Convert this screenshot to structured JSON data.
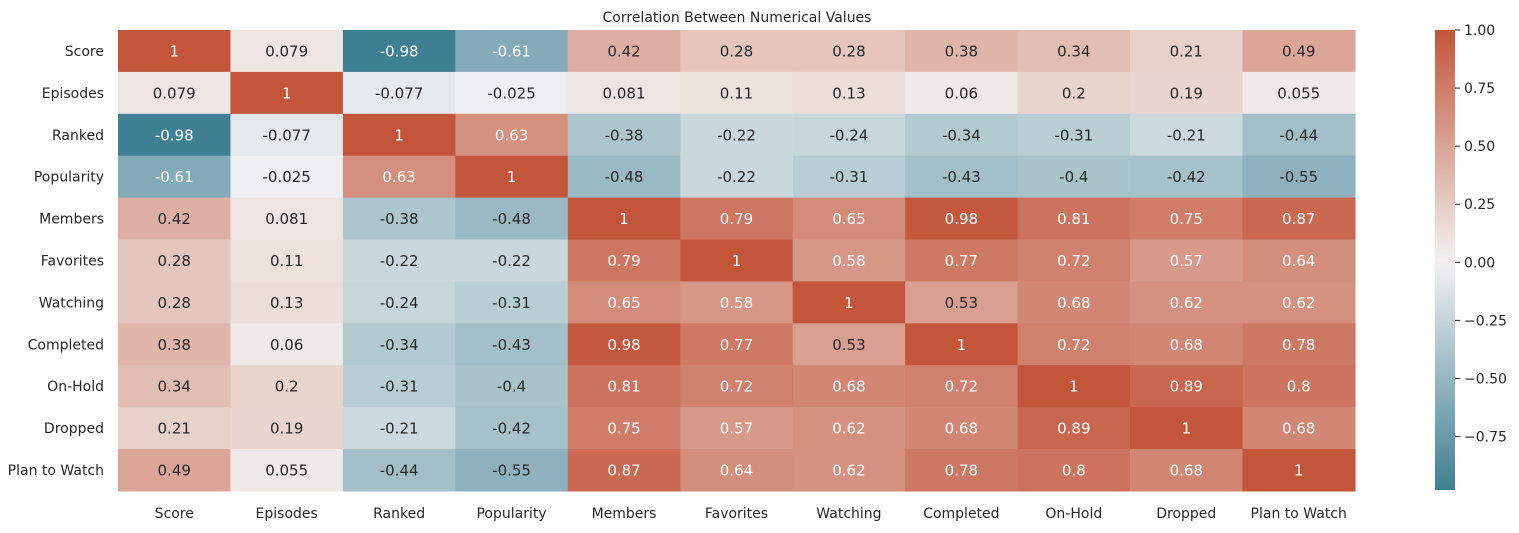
{
  "chart_data": {
    "type": "heatmap",
    "title": "Correlation Between Numerical Values",
    "xlabel": "",
    "ylabel": "",
    "x_categories": [
      "Score",
      "Episodes",
      "Ranked",
      "Popularity",
      "Members",
      "Favorites",
      "Watching",
      "Completed",
      "On-Hold",
      "Dropped",
      "Plan to Watch"
    ],
    "y_categories": [
      "Score",
      "Episodes",
      "Ranked",
      "Popularity",
      "Members",
      "Favorites",
      "Watching",
      "Completed",
      "On-Hold",
      "Dropped",
      "Plan to Watch"
    ],
    "values": [
      [
        1,
        0.079,
        -0.98,
        -0.61,
        0.42,
        0.28,
        0.28,
        0.38,
        0.34,
        0.21,
        0.49
      ],
      [
        0.079,
        1,
        -0.077,
        -0.025,
        0.081,
        0.11,
        0.13,
        0.06,
        0.2,
        0.19,
        0.055
      ],
      [
        -0.98,
        -0.077,
        1,
        0.63,
        -0.38,
        -0.22,
        -0.24,
        -0.34,
        -0.31,
        -0.21,
        -0.44
      ],
      [
        -0.61,
        -0.025,
        0.63,
        1,
        -0.48,
        -0.22,
        -0.31,
        -0.43,
        -0.4,
        -0.42,
        -0.55
      ],
      [
        0.42,
        0.081,
        -0.38,
        -0.48,
        1,
        0.79,
        0.65,
        0.98,
        0.81,
        0.75,
        0.87
      ],
      [
        0.28,
        0.11,
        -0.22,
        -0.22,
        0.79,
        1,
        0.58,
        0.77,
        0.72,
        0.57,
        0.64
      ],
      [
        0.28,
        0.13,
        -0.24,
        -0.31,
        0.65,
        0.58,
        1,
        0.53,
        0.68,
        0.62,
        0.62
      ],
      [
        0.38,
        0.06,
        -0.34,
        -0.43,
        0.98,
        0.77,
        0.53,
        1,
        0.72,
        0.68,
        0.78
      ],
      [
        0.34,
        0.2,
        -0.31,
        -0.4,
        0.81,
        0.72,
        0.68,
        0.72,
        1,
        0.89,
        0.8
      ],
      [
        0.21,
        0.19,
        -0.21,
        -0.42,
        0.75,
        0.57,
        0.62,
        0.68,
        0.89,
        1,
        0.68
      ],
      [
        0.49,
        0.055,
        -0.44,
        -0.55,
        0.87,
        0.64,
        0.62,
        0.78,
        0.8,
        0.68,
        1
      ]
    ],
    "value_range": [
      -0.98,
      1.0
    ],
    "colorbar": {
      "ticks": [
        1.0,
        0.75,
        0.5,
        0.25,
        0.0,
        -0.25,
        -0.5,
        -0.75
      ],
      "tick_labels": [
        "1.00",
        "0.75",
        "0.50",
        "0.25",
        "0.00",
        "−0.25",
        "−0.50",
        "−0.75"
      ],
      "placement": "right"
    },
    "colors": {
      "negative": "#3f7f93",
      "center": "#f2f2f2",
      "positive": "#c3553a"
    },
    "annotations": "cell values shown",
    "grid": false
  }
}
